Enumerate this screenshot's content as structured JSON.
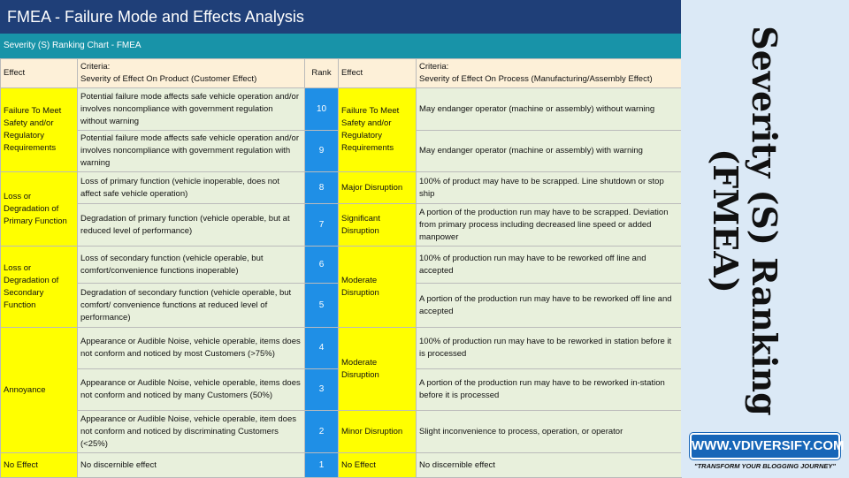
{
  "title": "FMEA - Failure Mode and Effects Analysis",
  "subtitle": "Severity (S) Ranking Chart - FMEA",
  "headers": {
    "effect": "Effect",
    "criteria_product": "Criteria:\nSeverity of Effect On Product (Customer Effect)",
    "rank": "Rank",
    "effect2": "Effect",
    "criteria_process": "Criteria:\nSeverity of Effect On Process (Manufacturing/Assembly Effect)"
  },
  "product_effects": [
    "Failure To Meet Safety and/or Regulatory Requirements",
    "Loss or Degradation of Primary Function",
    "Loss or Degradation of Secondary Function",
    "Annoyance",
    "No Effect"
  ],
  "rows": [
    {
      "criteria": "Potential failure mode affects safe vehicle operation and/or involves noncompliance with government regulation without warning",
      "rank": "10",
      "process_criteria": "May endanger operator (machine or assembly) without warning"
    },
    {
      "criteria": "Potential failure mode affects safe vehicle operation and/or involves noncompliance with government regulation with warning",
      "rank": "9",
      "process_criteria": "May endanger operator (machine or assembly) with warning"
    },
    {
      "criteria": "Loss of primary function (vehicle inoperable, does not affect safe vehicle operation)",
      "rank": "8",
      "process_criteria": "100% of product may have to be scrapped. Line shutdown or stop ship"
    },
    {
      "criteria": "Degradation of primary function (vehicle operable, but at reduced level of performance)",
      "rank": "7",
      "process_criteria": "A portion of the production run may have to be scrapped. Deviation from primary process including decreased line speed or added manpower"
    },
    {
      "criteria": "Loss of secondary function (vehicle operable, but comfort/convenience functions inoperable)",
      "rank": "6",
      "process_criteria": "100% of production run may have to be reworked off line and accepted"
    },
    {
      "criteria": "Degradation of secondary function (vehicle operable, but comfort/ convenience functions at reduced level of performance)",
      "rank": "5",
      "process_criteria": "A portion of the production run may have to be reworked off line and accepted"
    },
    {
      "criteria": "Appearance or Audible Noise, vehicle operable, items does not conform and noticed by most Customers (>75%)",
      "rank": "4",
      "process_criteria": "100% of production run may have to be reworked in station before it is processed"
    },
    {
      "criteria": "Appearance or Audible Noise, vehicle operable, items does not conform and noticed by many Customers (50%)",
      "rank": "3",
      "process_criteria": "A portion of the production run may have to be reworked in-station before it is processed"
    },
    {
      "criteria": "Appearance or Audible Noise, vehicle operable, item does not conform and noticed by discriminating Customers (<25%)",
      "rank": "2",
      "process_criteria": "Slight inconvenience to process, operation, or operator"
    },
    {
      "criteria": "No discernible effect",
      "rank": "1",
      "process_criteria": "No discernible effect"
    }
  ],
  "process_effects": [
    "Failure To Meet Safety and/or Regulatory Requirements",
    "Major Disruption",
    "Significant Disruption",
    "Moderate Disruption",
    "Moderate Disruption",
    "Minor Disruption",
    "No Effect"
  ],
  "side_title": "Severity (S) Ranking (FMEA)",
  "logo": {
    "main": "WWW.VDIVERSIFY.COM",
    "tagline": "\"TRANSFORM YOUR BLOGGING JOURNEY\""
  },
  "colors": {
    "title_bar": "#1f3f78",
    "sub_bar": "#1893a8",
    "effect_fill": "#ffff00",
    "rank_fill": "#1f8fe6",
    "criteria_fill": "#e8f0dc",
    "header_fill": "#fdf0d8"
  }
}
